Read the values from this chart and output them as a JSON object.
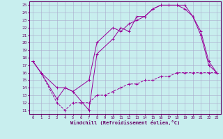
{
  "title": "",
  "xlabel": "Windchill (Refroidissement éolien,°C)",
  "ylabel": "",
  "background_color": "#c8eeee",
  "grid_color": "#aaaacc",
  "line_color": "#990099",
  "xlim": [
    -0.5,
    23.5
  ],
  "ylim": [
    10.5,
    25.5
  ],
  "xticks": [
    0,
    1,
    2,
    3,
    4,
    5,
    6,
    7,
    8,
    9,
    10,
    11,
    12,
    13,
    14,
    15,
    16,
    17,
    18,
    19,
    20,
    21,
    22,
    23
  ],
  "yticks": [
    11,
    12,
    13,
    14,
    15,
    16,
    17,
    18,
    19,
    20,
    21,
    22,
    23,
    24,
    25
  ],
  "line1_x": [
    0,
    1,
    3,
    4,
    5,
    7,
    8,
    10,
    11,
    12,
    13,
    14,
    15,
    16,
    17,
    18,
    19,
    20,
    21,
    22,
    23
  ],
  "line1_y": [
    17.5,
    16.0,
    12.5,
    14.0,
    13.5,
    11.0,
    18.5,
    20.5,
    22.0,
    21.5,
    23.5,
    23.5,
    24.5,
    25.0,
    25.0,
    25.0,
    24.5,
    23.5,
    21.0,
    17.0,
    16.0
  ],
  "line2_x": [
    0,
    1,
    3,
    4,
    5,
    7,
    8,
    10,
    11,
    12,
    13,
    14,
    15,
    16,
    17,
    18,
    19,
    20,
    21,
    22,
    23
  ],
  "line2_y": [
    17.5,
    16.0,
    14.0,
    14.0,
    13.5,
    15.0,
    20.0,
    22.0,
    21.5,
    22.5,
    23.0,
    23.5,
    24.5,
    25.0,
    25.0,
    25.0,
    25.0,
    23.5,
    21.5,
    17.5,
    16.0
  ],
  "line3_x": [
    0,
    1,
    3,
    4,
    5,
    6,
    7,
    8,
    9,
    10,
    11,
    12,
    13,
    14,
    15,
    16,
    17,
    18,
    19,
    20,
    21,
    22,
    23
  ],
  "line3_y": [
    17.5,
    16.0,
    12.0,
    11.0,
    12.0,
    12.0,
    12.0,
    13.0,
    13.0,
    13.5,
    14.0,
    14.5,
    14.5,
    15.0,
    15.0,
    15.5,
    15.5,
    16.0,
    16.0,
    16.0,
    16.0,
    16.0,
    16.0
  ]
}
